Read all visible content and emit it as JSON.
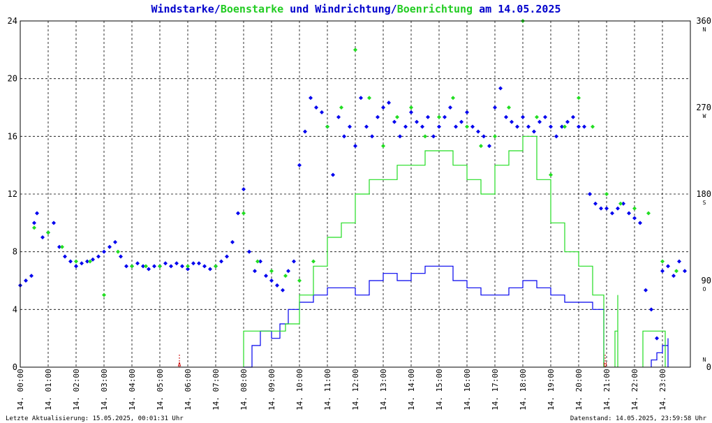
{
  "chart_data": {
    "type": "scatter",
    "title": {
      "parts": [
        {
          "text": "Windstarke",
          "color": "#0000cc"
        },
        {
          "text": "/",
          "color": "#0000cc"
        },
        {
          "text": "Boenstarke",
          "color": "#22cc22"
        },
        {
          "text": " und ",
          "color": "#0000cc"
        },
        {
          "text": "Windrichtung",
          "color": "#0000cc"
        },
        {
          "text": "/",
          "color": "#0000cc"
        },
        {
          "text": "Boenrichtung",
          "color": "#22cc22"
        },
        {
          "text": " am 14.05.2025",
          "color": "#0000cc"
        }
      ]
    },
    "x_range_hours": [
      0,
      24
    ],
    "x_tick_labels": [
      "14. 00:00",
      "14. 01:00",
      "14. 02:00",
      "14. 03:00",
      "14. 04:00",
      "14. 05:00",
      "14. 06:00",
      "14. 07:00",
      "14. 08:00",
      "14. 09:00",
      "14. 10:00",
      "14. 11:00",
      "14. 12:00",
      "14. 13:00",
      "14. 14:00",
      "14. 15:00",
      "14. 16:00",
      "14. 17:00",
      "14. 18:00",
      "14. 19:00",
      "14. 20:00",
      "14. 21:00",
      "14. 22:00",
      "14. 23:00"
    ],
    "y_left_range": [
      0,
      24
    ],
    "y_left_ticks": [
      "0",
      "4",
      "8",
      "12",
      "16",
      "20",
      "24"
    ],
    "y_right_range": [
      0,
      360
    ],
    "y_right_ticks": [
      "0",
      "90",
      "180",
      "270",
      "360"
    ],
    "y_right_cardinals": [
      "N",
      "O",
      "S",
      "W",
      "N"
    ],
    "grid": true,
    "markers": [
      {
        "label": "A",
        "hour": 5.7
      },
      {
        "label": "U",
        "hour": 20.95
      }
    ],
    "series": [
      {
        "name": "Windstarke",
        "kind": "line",
        "color": "#0000ee",
        "segments": [
          {
            "x": [
              8.0,
              8.3,
              8.6,
              9.0,
              9.3,
              9.6,
              10.0,
              10.5,
              11.0,
              11.5,
              12.0,
              12.5,
              13.0,
              13.5,
              14.0,
              14.5,
              15.0,
              15.5,
              16.0,
              16.5,
              17.0,
              17.5,
              18.0,
              18.5,
              19.0,
              19.5,
              20.0,
              20.5,
              20.9
            ],
            "y": [
              0,
              1.5,
              2.5,
              2,
              3,
              4,
              4.5,
              5,
              5.5,
              5.5,
              5,
              6,
              6.5,
              6,
              6.5,
              7,
              7,
              6,
              5.5,
              5,
              5,
              5.5,
              6,
              5.5,
              5,
              4.5,
              4.5,
              4,
              3
            ]
          },
          {
            "x": [
              22.6,
              22.8,
              23.0,
              23.2
            ],
            "y": [
              0.5,
              1,
              1.5,
              2
            ]
          }
        ]
      },
      {
        "name": "Boenstarke",
        "kind": "line",
        "color": "#22dd22",
        "segments": [
          {
            "x": [
              8.0,
              8.5,
              9.0,
              9.5,
              10.0,
              10.5,
              11.0,
              11.5,
              12.0,
              12.5,
              13.0,
              13.5,
              14.0,
              14.5,
              15.0,
              15.5,
              16.0,
              16.5,
              17.0,
              17.5,
              18.0,
              18.5,
              19.0,
              19.5,
              20.0,
              20.5,
              20.9
            ],
            "y": [
              2.5,
              2.5,
              2.5,
              3,
              5,
              7,
              9,
              10,
              12,
              13,
              13,
              14,
              14,
              15,
              15,
              14,
              13,
              12,
              14,
              15,
              16,
              13,
              10,
              8,
              7,
              5,
              2.5
            ]
          },
          {
            "x": [
              21.3,
              21.4
            ],
            "y": [
              2.5,
              5
            ]
          },
          {
            "x": [
              22.3,
              22.6,
              22.9,
              23.1
            ],
            "y": [
              2.5,
              2.5,
              2.5,
              2.5
            ]
          }
        ]
      },
      {
        "name": "Windrichtung",
        "kind": "scatter",
        "color": "#0000ee",
        "x": [
          0.0,
          0.2,
          0.4,
          0.5,
          0.6,
          0.8,
          1.0,
          1.2,
          1.4,
          1.6,
          1.8,
          2.0,
          2.2,
          2.4,
          2.6,
          2.8,
          3.0,
          3.2,
          3.4,
          3.6,
          3.8,
          4.0,
          4.2,
          4.4,
          4.6,
          4.8,
          5.0,
          5.2,
          5.4,
          5.6,
          5.8,
          6.0,
          6.2,
          6.4,
          6.6,
          6.8,
          7.0,
          7.2,
          7.4,
          7.6,
          7.8,
          8.0,
          8.2,
          8.4,
          8.6,
          8.8,
          9.0,
          9.2,
          9.4,
          9.6,
          9.8,
          10.0,
          10.2,
          10.4,
          10.6,
          10.8,
          11.0,
          11.2,
          11.4,
          11.6,
          11.8,
          12.0,
          12.2,
          12.4,
          12.6,
          12.8,
          13.0,
          13.2,
          13.4,
          13.6,
          13.8,
          14.0,
          14.2,
          14.4,
          14.6,
          14.8,
          15.0,
          15.2,
          15.4,
          15.6,
          15.8,
          16.0,
          16.2,
          16.4,
          16.6,
          16.8,
          17.0,
          17.2,
          17.4,
          17.6,
          17.8,
          18.0,
          18.2,
          18.4,
          18.6,
          18.8,
          19.0,
          19.2,
          19.4,
          19.6,
          19.8,
          20.0,
          20.2,
          20.4,
          20.6,
          20.8,
          21.0,
          21.2,
          21.4,
          21.6,
          21.8,
          22.0,
          22.2,
          22.4,
          22.6,
          22.8,
          23.0,
          23.2,
          23.4,
          23.6,
          23.8
        ],
        "y": [
          85,
          90,
          95,
          150,
          160,
          135,
          140,
          150,
          125,
          115,
          110,
          105,
          108,
          110,
          112,
          115,
          120,
          125,
          130,
          115,
          105,
          105,
          108,
          105,
          102,
          105,
          105,
          108,
          105,
          108,
          105,
          102,
          108,
          108,
          105,
          102,
          105,
          110,
          115,
          130,
          160,
          185,
          120,
          100,
          110,
          95,
          90,
          85,
          80,
          100,
          110,
          210,
          245,
          280,
          270,
          265,
          250,
          200,
          260,
          240,
          250,
          230,
          280,
          250,
          240,
          260,
          270,
          275,
          255,
          240,
          250,
          265,
          255,
          250,
          260,
          240,
          250,
          260,
          270,
          250,
          255,
          265,
          250,
          245,
          240,
          230,
          270,
          290,
          260,
          255,
          250,
          260,
          250,
          245,
          255,
          260,
          250,
          240,
          250,
          255,
          260,
          250,
          250,
          180,
          170,
          165,
          165,
          160,
          165,
          170,
          160,
          155,
          150,
          80,
          60,
          30,
          100,
          105,
          95,
          110,
          100
        ]
      },
      {
        "name": "Boenrichtung",
        "kind": "scatter",
        "color": "#22dd22",
        "x": [
          0.5,
          1.0,
          1.5,
          2.0,
          2.5,
          3.0,
          3.5,
          4.0,
          4.5,
          5.0,
          6.0,
          7.0,
          8.0,
          8.5,
          9.0,
          9.5,
          10.0,
          10.5,
          11.0,
          11.5,
          12.0,
          12.5,
          13.0,
          13.5,
          14.0,
          14.5,
          15.0,
          15.5,
          16.0,
          16.5,
          17.0,
          17.5,
          18.0,
          18.5,
          19.0,
          19.5,
          20.0,
          20.5,
          21.0,
          21.5,
          22.0,
          22.5,
          23.0,
          23.5
        ],
        "y": [
          145,
          140,
          125,
          110,
          110,
          75,
          120,
          105,
          105,
          105,
          105,
          105,
          160,
          110,
          100,
          95,
          90,
          110,
          250,
          270,
          330,
          280,
          230,
          260,
          270,
          240,
          260,
          280,
          250,
          230,
          240,
          270,
          360,
          260,
          200,
          250,
          280,
          250,
          180,
          170,
          165,
          160,
          110,
          100
        ]
      }
    ],
    "footer_left": "Letzte Aktualisierung: 15.05.2025, 00:01:31 Uhr",
    "footer_right": "Datenstand: 14.05.2025, 23:59:58 Uhr"
  }
}
